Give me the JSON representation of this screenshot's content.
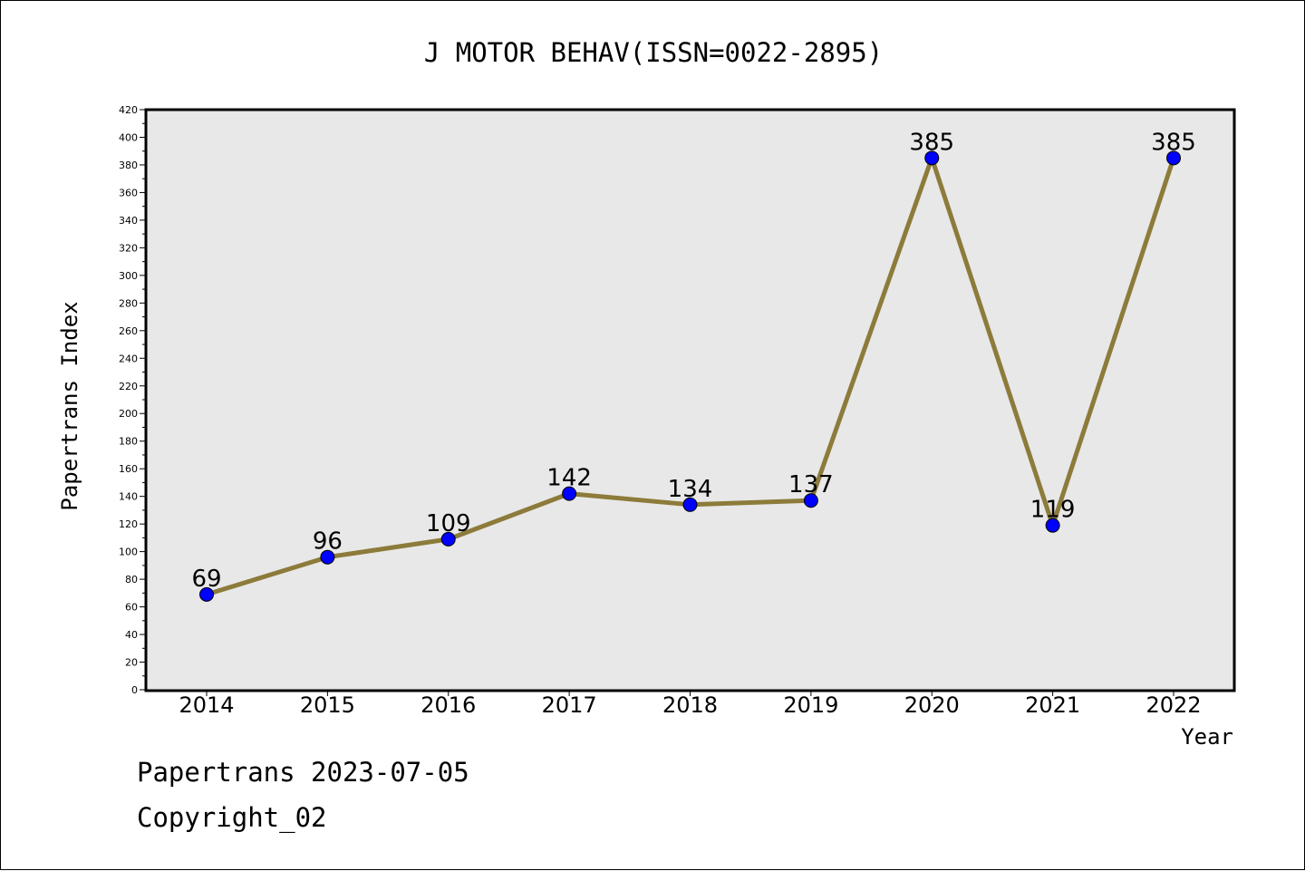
{
  "chart_data": {
    "type": "line",
    "title": "J MOTOR BEHAV(ISSN=0022-2895)",
    "xlabel": "Year",
    "ylabel": "Papertrans Index",
    "categories": [
      "2014",
      "2015",
      "2016",
      "2017",
      "2018",
      "2019",
      "2020",
      "2021",
      "2022"
    ],
    "series": [
      {
        "values": [
          69,
          96,
          109,
          142,
          134,
          137,
          385,
          119,
          385
        ]
      }
    ],
    "data_labels": [
      "69",
      "96",
      "109",
      "142",
      "134",
      "137",
      "385",
      "119",
      "385"
    ],
    "y_ticks": [
      "0",
      "20",
      "40",
      "60",
      "80",
      "100",
      "120",
      "140",
      "160",
      "180",
      "200",
      "220",
      "240",
      "260",
      "280",
      "300",
      "320",
      "340",
      "360",
      "380",
      "400",
      "420"
    ],
    "ylim": [
      0,
      420
    ],
    "grid": false,
    "legend": "none",
    "colors": {
      "line": "#8c7b3a",
      "marker": "#0000ff",
      "plot_background": "#e8e8e8"
    }
  },
  "footer": {
    "source": "Papertrans 2023-07-05",
    "copyright": "Copyright_02"
  }
}
